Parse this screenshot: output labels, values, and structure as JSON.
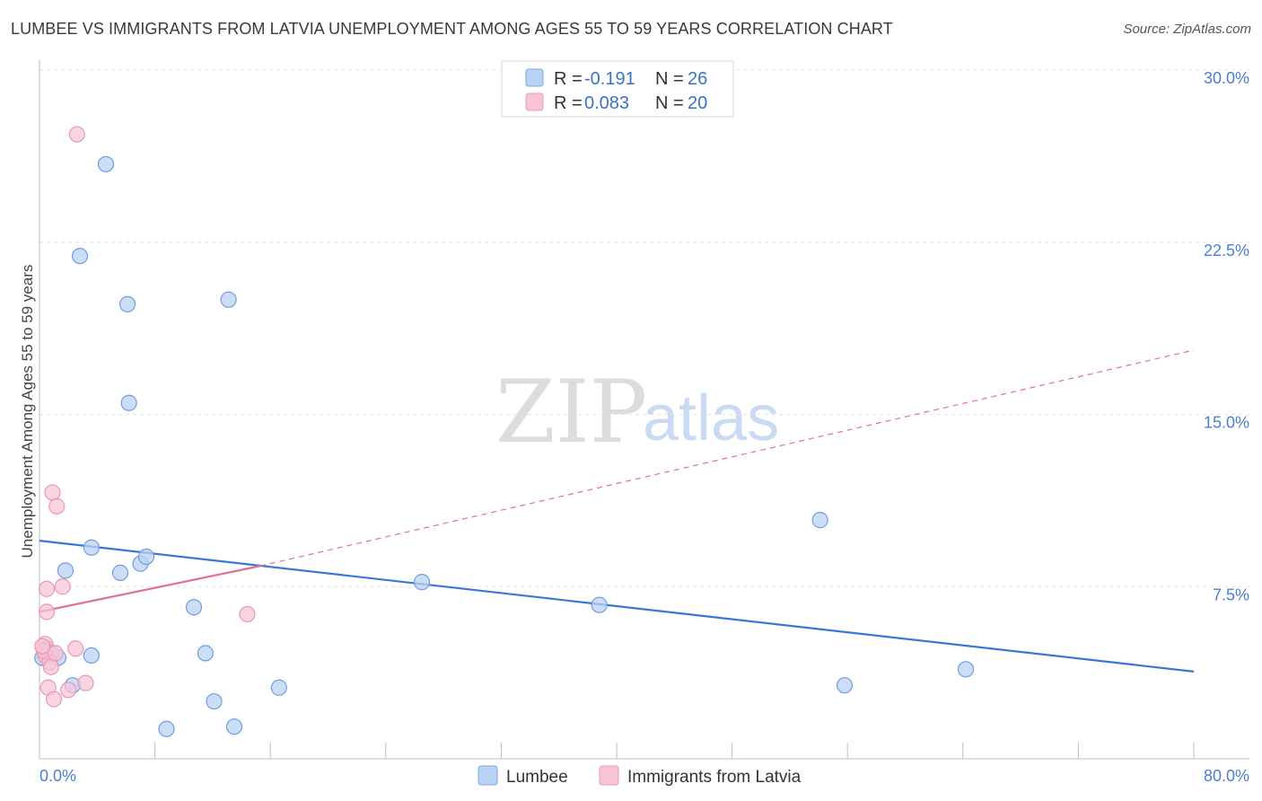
{
  "title": "LUMBEE VS IMMIGRANTS FROM LATVIA UNEMPLOYMENT AMONG AGES 55 TO 59 YEARS CORRELATION CHART",
  "source": "Source: ZipAtlas.com",
  "watermark": {
    "zip": "ZIP",
    "atlas": "atlas"
  },
  "colors": {
    "lumbee": "#3a76d6",
    "latvia": "#e06f9a",
    "lumbee_fill": "#b9d2f4",
    "latvia_fill": "#f7c3d5",
    "tick": "#4a7fd4"
  },
  "legend": {
    "rows": [
      {
        "r_label": "R = ",
        "r_value": "-0.191",
        "n_label": "N = ",
        "n_value": "26"
      },
      {
        "r_label": "R = ",
        "r_value": "0.083",
        "n_label": "N = ",
        "n_value": "20"
      }
    ]
  },
  "bottom_legend": [
    "Lumbee",
    "Immigrants from Latvia"
  ],
  "chart_data": {
    "type": "scatter",
    "ylabel": "Unemployment Among Ages 55 to 59 years",
    "xlabel": "",
    "xlim": [
      0,
      80
    ],
    "ylim": [
      0,
      30
    ],
    "x_tick_labels": [
      "0.0%",
      "80.0%"
    ],
    "y_ticks": [
      7.5,
      15.0,
      22.5,
      30.0
    ],
    "y_tick_labels": [
      "7.5%",
      "15.0%",
      "22.5%",
      "30.0%"
    ],
    "series": [
      {
        "name": "Lumbee",
        "points": [
          [
            4.6,
            25.9
          ],
          [
            2.8,
            21.9
          ],
          [
            6.1,
            19.8
          ],
          [
            13.1,
            20.0
          ],
          [
            6.2,
            15.5
          ],
          [
            3.6,
            9.2
          ],
          [
            1.8,
            8.2
          ],
          [
            5.6,
            8.1
          ],
          [
            7.0,
            8.5
          ],
          [
            7.4,
            8.8
          ],
          [
            26.5,
            7.7
          ],
          [
            38.8,
            6.7
          ],
          [
            10.7,
            6.6
          ],
          [
            1.3,
            4.4
          ],
          [
            3.6,
            4.5
          ],
          [
            11.5,
            4.6
          ],
          [
            0.2,
            4.4
          ],
          [
            2.3,
            3.2
          ],
          [
            16.6,
            3.1
          ],
          [
            12.1,
            2.5
          ],
          [
            8.8,
            1.3
          ],
          [
            13.5,
            1.4
          ],
          [
            54.1,
            10.4
          ],
          [
            55.8,
            3.2
          ],
          [
            64.2,
            3.9
          ],
          [
            0.5,
            4.8
          ]
        ],
        "trendline": {
          "x": [
            0,
            80
          ],
          "y": [
            9.5,
            3.8
          ],
          "style": "solid"
        }
      },
      {
        "name": "Immigrants from Latvia",
        "points": [
          [
            2.6,
            27.2
          ],
          [
            0.9,
            11.6
          ],
          [
            1.2,
            11.0
          ],
          [
            1.6,
            7.5
          ],
          [
            0.5,
            7.4
          ],
          [
            0.5,
            6.4
          ],
          [
            14.4,
            6.3
          ],
          [
            0.4,
            5.0
          ],
          [
            0.8,
            4.6
          ],
          [
            0.4,
            4.5
          ],
          [
            2.5,
            4.8
          ],
          [
            0.7,
            4.2
          ],
          [
            0.8,
            4.0
          ],
          [
            3.2,
            3.3
          ],
          [
            0.6,
            3.1
          ],
          [
            2.0,
            3.0
          ],
          [
            1.0,
            2.6
          ],
          [
            0.3,
            4.7
          ],
          [
            1.1,
            4.6
          ],
          [
            0.2,
            4.9
          ]
        ],
        "trendline": {
          "x": [
            0,
            15.3,
            80
          ],
          "y": [
            6.4,
            8.4,
            17.8
          ],
          "solid_until": 15.3
        }
      }
    ]
  }
}
